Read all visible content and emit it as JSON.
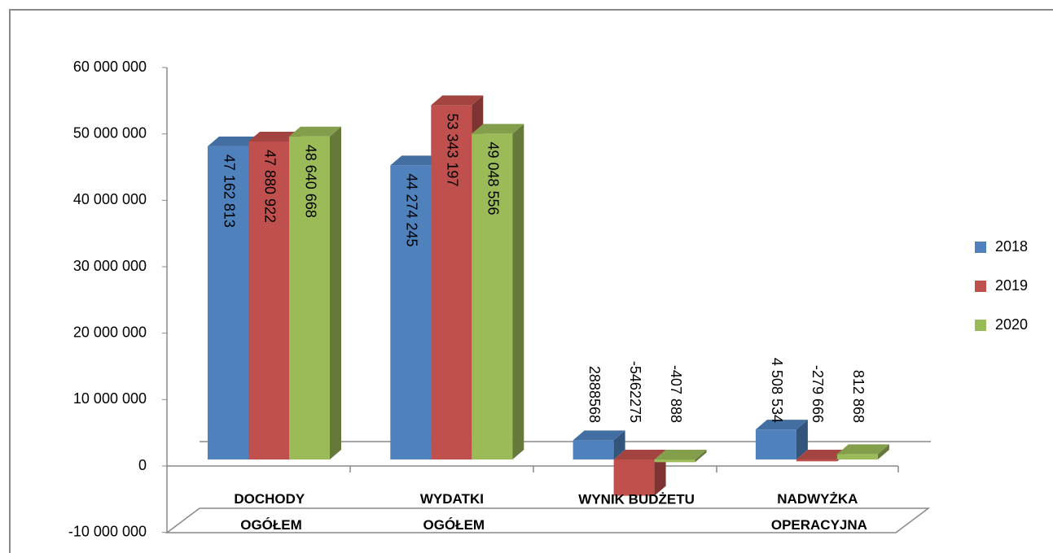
{
  "chart_data": {
    "type": "bar3d",
    "categories": [
      "DOCHODY OGÓŁEM",
      "WYDATKI OGÓŁEM",
      "WYNIK BUDŻETU",
      "NADWYŻKA OPERACYJNA"
    ],
    "series": [
      {
        "name": "2018",
        "color": "#4f81bd",
        "values": [
          47162813,
          44274245,
          2888568,
          4508534
        ],
        "value_labels": [
          "47 162 813",
          "44 274 245",
          "2888568",
          "4 508 534"
        ]
      },
      {
        "name": "2019",
        "color": "#c0504d",
        "values": [
          47880922,
          53343197,
          -5462275,
          -279666
        ],
        "value_labels": [
          "47 880 922",
          "53 343 197",
          "-5462275",
          "-279 666"
        ]
      },
      {
        "name": "2020",
        "color": "#9bbb59",
        "values": [
          48640668,
          49048556,
          -407888,
          812868
        ],
        "value_labels": [
          "48 640 668",
          "49 048 556",
          "-407 888",
          "812 868"
        ]
      }
    ],
    "ylim": [
      -10000000,
      60000000
    ],
    "yticks": [
      {
        "value": -10000000,
        "label": "-10 000 000"
      },
      0,
      {
        "value": 10000000,
        "label": "10 000 000"
      },
      {
        "value": 20000000,
        "label": "20 000 000"
      },
      {
        "value": 30000000,
        "label": "30 000 000"
      },
      {
        "value": 40000000,
        "label": "40 000 000"
      },
      {
        "value": 50000000,
        "label": "50 000 000"
      },
      {
        "value": 60000000,
        "label": "60 000 000"
      }
    ],
    "legend": "right"
  }
}
